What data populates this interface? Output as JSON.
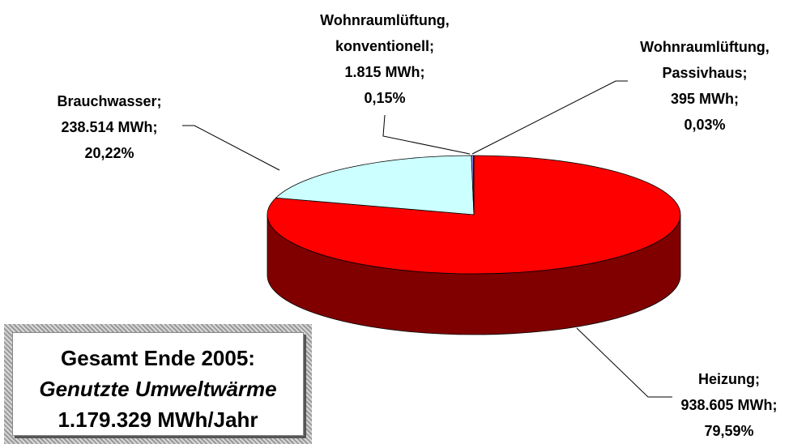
{
  "chart_data": {
    "type": "pie3d",
    "categories": [
      "Heizung;",
      "Brauchwasser;",
      "Wohnraumlüftung, konventionell;",
      "Wohnraumlüftung, Passivhaus;"
    ],
    "values": [
      938605,
      238514,
      1815,
      395
    ],
    "value_labels": [
      "938.605 MWh;",
      "238.514 MWh;",
      "1.815 MWh;",
      "395 MWh;"
    ],
    "percentages": [
      79.59,
      20.22,
      0.15,
      0.03
    ],
    "percentage_labels": [
      "79,59%",
      "20,22%",
      "0,15%",
      "0,03%"
    ],
    "colors": [
      "#ff0000",
      "#ccffff",
      "#9999ff",
      "#993366"
    ],
    "side_colors": [
      "#800000",
      "#66aaaa",
      "#4d4d99",
      "#4d1a33"
    ],
    "annotation": {
      "title": "Gesamt Ende 2005:",
      "subtitle": "Genutzte Umweltwärme",
      "total": "1.179.329 MWh/Jahr"
    }
  }
}
